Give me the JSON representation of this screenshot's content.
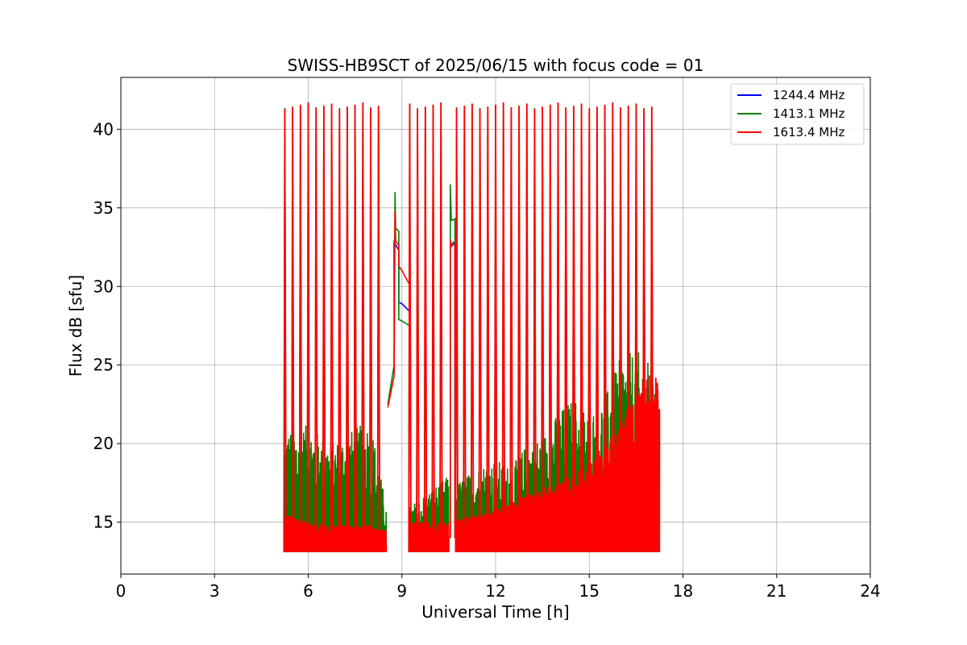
{
  "chart_data": {
    "type": "line",
    "title": "SWISS-HB9SCT of 2025/06/15 with focus code = 01",
    "xlabel": "Universal Time [h]",
    "ylabel": "Flux dB [sfu]",
    "xlim": [
      0,
      24
    ],
    "ylim": [
      11.7,
      43.3
    ],
    "xticks": [
      0,
      3,
      6,
      9,
      12,
      15,
      18,
      21,
      24
    ],
    "yticks": [
      15,
      20,
      25,
      30,
      35,
      40
    ],
    "grid": true,
    "legend_position": "top-right",
    "background_level": 13.1,
    "calibration_peak": 41.5,
    "calibration_spikes_x": [
      5.25,
      5.5,
      5.75,
      6.0,
      6.25,
      6.5,
      6.75,
      7.0,
      7.25,
      7.5,
      7.75,
      8.0,
      8.25,
      9.25,
      9.5,
      9.75,
      10.0,
      10.25,
      10.75,
      11.0,
      11.25,
      11.5,
      11.75,
      12.0,
      12.25,
      12.5,
      12.75,
      13.0,
      13.25,
      13.5,
      13.75,
      14.0,
      14.25,
      14.5,
      14.75,
      15.0,
      15.25,
      15.5,
      15.75,
      16.0,
      16.25,
      16.5,
      16.75,
      17.0
    ],
    "series": [
      {
        "name": "1244.4 MHz",
        "color": "#0000ff",
        "gap_path": {
          "x": [
            8.75,
            8.75,
            8.9,
            8.9,
            9.0,
            9.25,
            9.25
          ],
          "y": [
            24.5,
            32.8,
            32.3,
            29.0,
            28.9,
            28.4,
            22.8
          ]
        },
        "burst_path": {
          "x": [
            10.55,
            10.55,
            10.6,
            10.65,
            10.7,
            10.7
          ],
          "y": [
            14.0,
            32.9,
            32.6,
            32.8,
            32.7,
            14.0
          ]
        }
      },
      {
        "name": "1413.1 MHz",
        "color": "#008000",
        "gap_path": {
          "x": [
            8.55,
            8.75,
            8.78,
            8.8,
            8.9,
            8.9,
            9.0,
            9.25,
            9.25
          ],
          "y": [
            22.5,
            25.0,
            36.0,
            33.7,
            33.5,
            27.9,
            27.8,
            27.5,
            22.8
          ]
        },
        "burst_path": {
          "x": [
            10.55,
            10.55,
            10.58,
            10.6,
            10.7,
            10.7
          ],
          "y": [
            14.0,
            36.5,
            34.3,
            34.2,
            34.3,
            14.0
          ]
        },
        "noise_envelope": {
          "x": [
            5.25,
            6.0,
            6.75,
            7.5,
            8.0,
            8.5,
            9.25,
            10.0,
            10.5,
            10.75,
            11.5,
            12.0,
            12.5,
            13.0,
            13.5,
            14.0,
            14.5,
            15.0,
            15.5,
            16.0,
            16.5,
            17.0,
            17.25
          ],
          "y": [
            20.8,
            21.2,
            20.0,
            21.0,
            21.5,
            16.0,
            16.0,
            17.2,
            18.0,
            17.5,
            18.6,
            19.0,
            18.5,
            20.0,
            20.5,
            22.0,
            23.0,
            22.0,
            23.0,
            25.5,
            26.0,
            25.0,
            22.0
          ]
        }
      },
      {
        "name": "1613.4 MHz",
        "color": "#ff0000",
        "gap_path": {
          "x": [
            8.55,
            8.75,
            8.78,
            8.8,
            8.9,
            8.9,
            9.0,
            9.25,
            9.25
          ],
          "y": [
            22.3,
            24.3,
            34.8,
            32.9,
            32.6,
            31.3,
            31.0,
            30.1,
            22.8
          ]
        },
        "burst_path": {
          "x": [
            10.55,
            10.55,
            10.58,
            10.6,
            10.7,
            10.7
          ],
          "y": [
            14.0,
            33.0,
            32.6,
            32.7,
            32.6,
            14.0
          ]
        },
        "noise_envelope": {
          "x": [
            5.25,
            6.0,
            6.75,
            7.5,
            8.0,
            8.5,
            9.25,
            10.0,
            10.5,
            10.75,
            11.5,
            12.0,
            12.5,
            13.0,
            13.5,
            14.0,
            14.5,
            15.0,
            15.5,
            16.0,
            16.5,
            17.0,
            17.25
          ],
          "y": [
            15.5,
            15.0,
            14.8,
            14.8,
            14.8,
            14.5,
            15.0,
            15.0,
            15.0,
            15.2,
            15.5,
            15.8,
            16.2,
            16.8,
            17.2,
            17.5,
            18.0,
            19.0,
            20.0,
            21.5,
            23.0,
            25.0,
            23.5
          ]
        }
      }
    ]
  }
}
